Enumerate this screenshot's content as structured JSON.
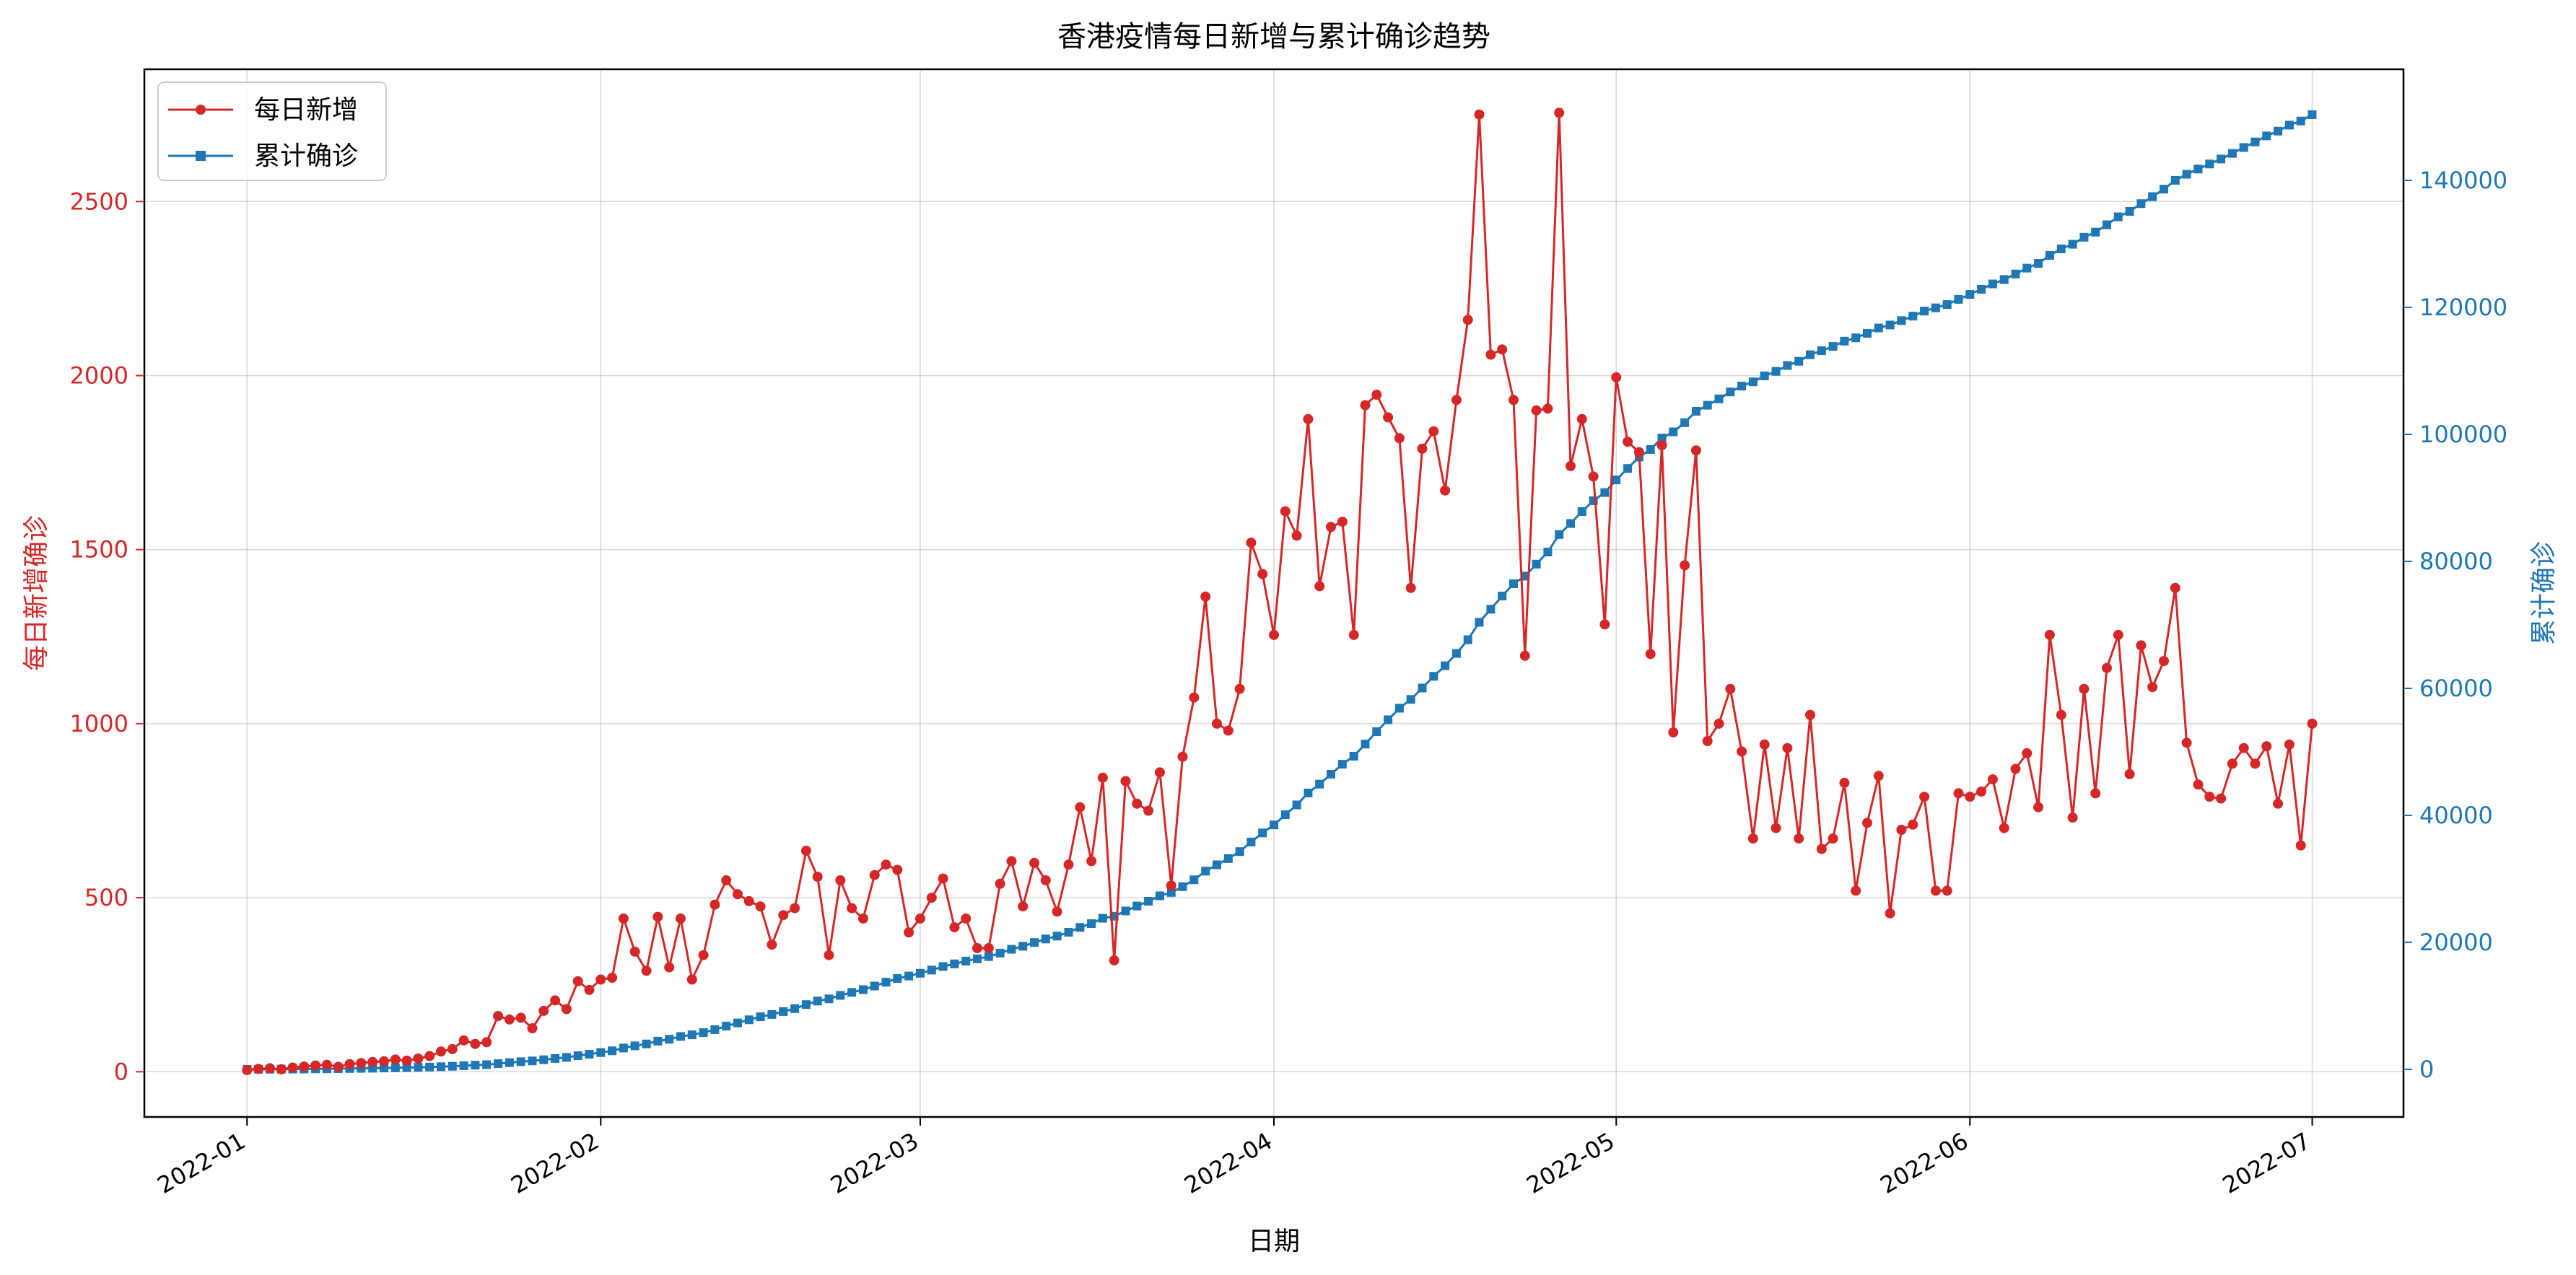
{
  "chart_data": {
    "type": "line",
    "title": "香港疫情每日新增与累计确诊趋势",
    "xlabel": "日期",
    "ylabel_left": "每日新增确诊",
    "ylabel_right": "累计确诊",
    "x_start": "2022-01-01",
    "x_end": "2022-06-29",
    "xlim": [
      "2021-12-23",
      "2022-07-09"
    ],
    "ylim_left": [
      -130,
      2880
    ],
    "ylim_right": [
      -7500,
      157500
    ],
    "x_ticks": [
      "2022-01",
      "2022-02",
      "2022-03",
      "2022-04",
      "2022-05",
      "2022-06",
      "2022-07"
    ],
    "y_ticks_left": [
      "0",
      "500",
      "1000",
      "1500",
      "2000",
      "2500"
    ],
    "y_ticks_right": [
      "0",
      "20000",
      "40000",
      "60000",
      "80000",
      "100000",
      "120000",
      "140000"
    ],
    "grid": true,
    "legend_position": "top-left",
    "colors": {
      "daily": "#d62728",
      "cumulative": "#1f77b4"
    },
    "series": [
      {
        "name": "每日新增",
        "axis": "left",
        "marker": "circle",
        "values": [
          5,
          8,
          10,
          7,
          12,
          15,
          18,
          20,
          14,
          22,
          25,
          28,
          30,
          35,
          32,
          38,
          45,
          58,
          65,
          90,
          80,
          85,
          160,
          150,
          155,
          125,
          175,
          205,
          180,
          260,
          235,
          265,
          270,
          440,
          345,
          290,
          445,
          300,
          440,
          265,
          335,
          480,
          550,
          510,
          490,
          475,
          365,
          450,
          470,
          635,
          560,
          335,
          550,
          470,
          440,
          565,
          595,
          580,
          400,
          440,
          500,
          555,
          415,
          440,
          355,
          355,
          540,
          605,
          475,
          600,
          550,
          460,
          595,
          760,
          605,
          845,
          320,
          835,
          770,
          750,
          860,
          535,
          905,
          1075,
          1365,
          1000,
          980,
          1100,
          1520,
          1430,
          1255,
          1610,
          1540,
          1875,
          1395,
          1565,
          1580,
          1255,
          1915,
          1945,
          1880,
          1820,
          1390,
          1790,
          1840,
          1670,
          1930,
          2160,
          2750,
          2060,
          2075,
          1930,
          1195,
          1900,
          1905,
          2755,
          1740,
          1875,
          1710,
          1285,
          1995,
          1810,
          1780,
          1200,
          1800,
          975,
          1455,
          1785,
          950,
          1000,
          1100,
          920,
          670,
          940,
          700,
          930,
          670,
          1025,
          640,
          670,
          830,
          520,
          715,
          850,
          455,
          695,
          710,
          790,
          520,
          520,
          800,
          790,
          805,
          840,
          700,
          870,
          915,
          760,
          1255,
          1025,
          730,
          1100,
          800,
          1160,
          1255,
          855,
          1225,
          1105,
          1180,
          1390,
          945,
          825,
          790,
          785,
          885,
          930,
          885,
          935,
          770,
          940,
          650,
          1000
        ]
      },
      {
        "name": "累计确诊",
        "axis": "right",
        "marker": "square",
        "cumulative_of_daily": true
      }
    ]
  }
}
